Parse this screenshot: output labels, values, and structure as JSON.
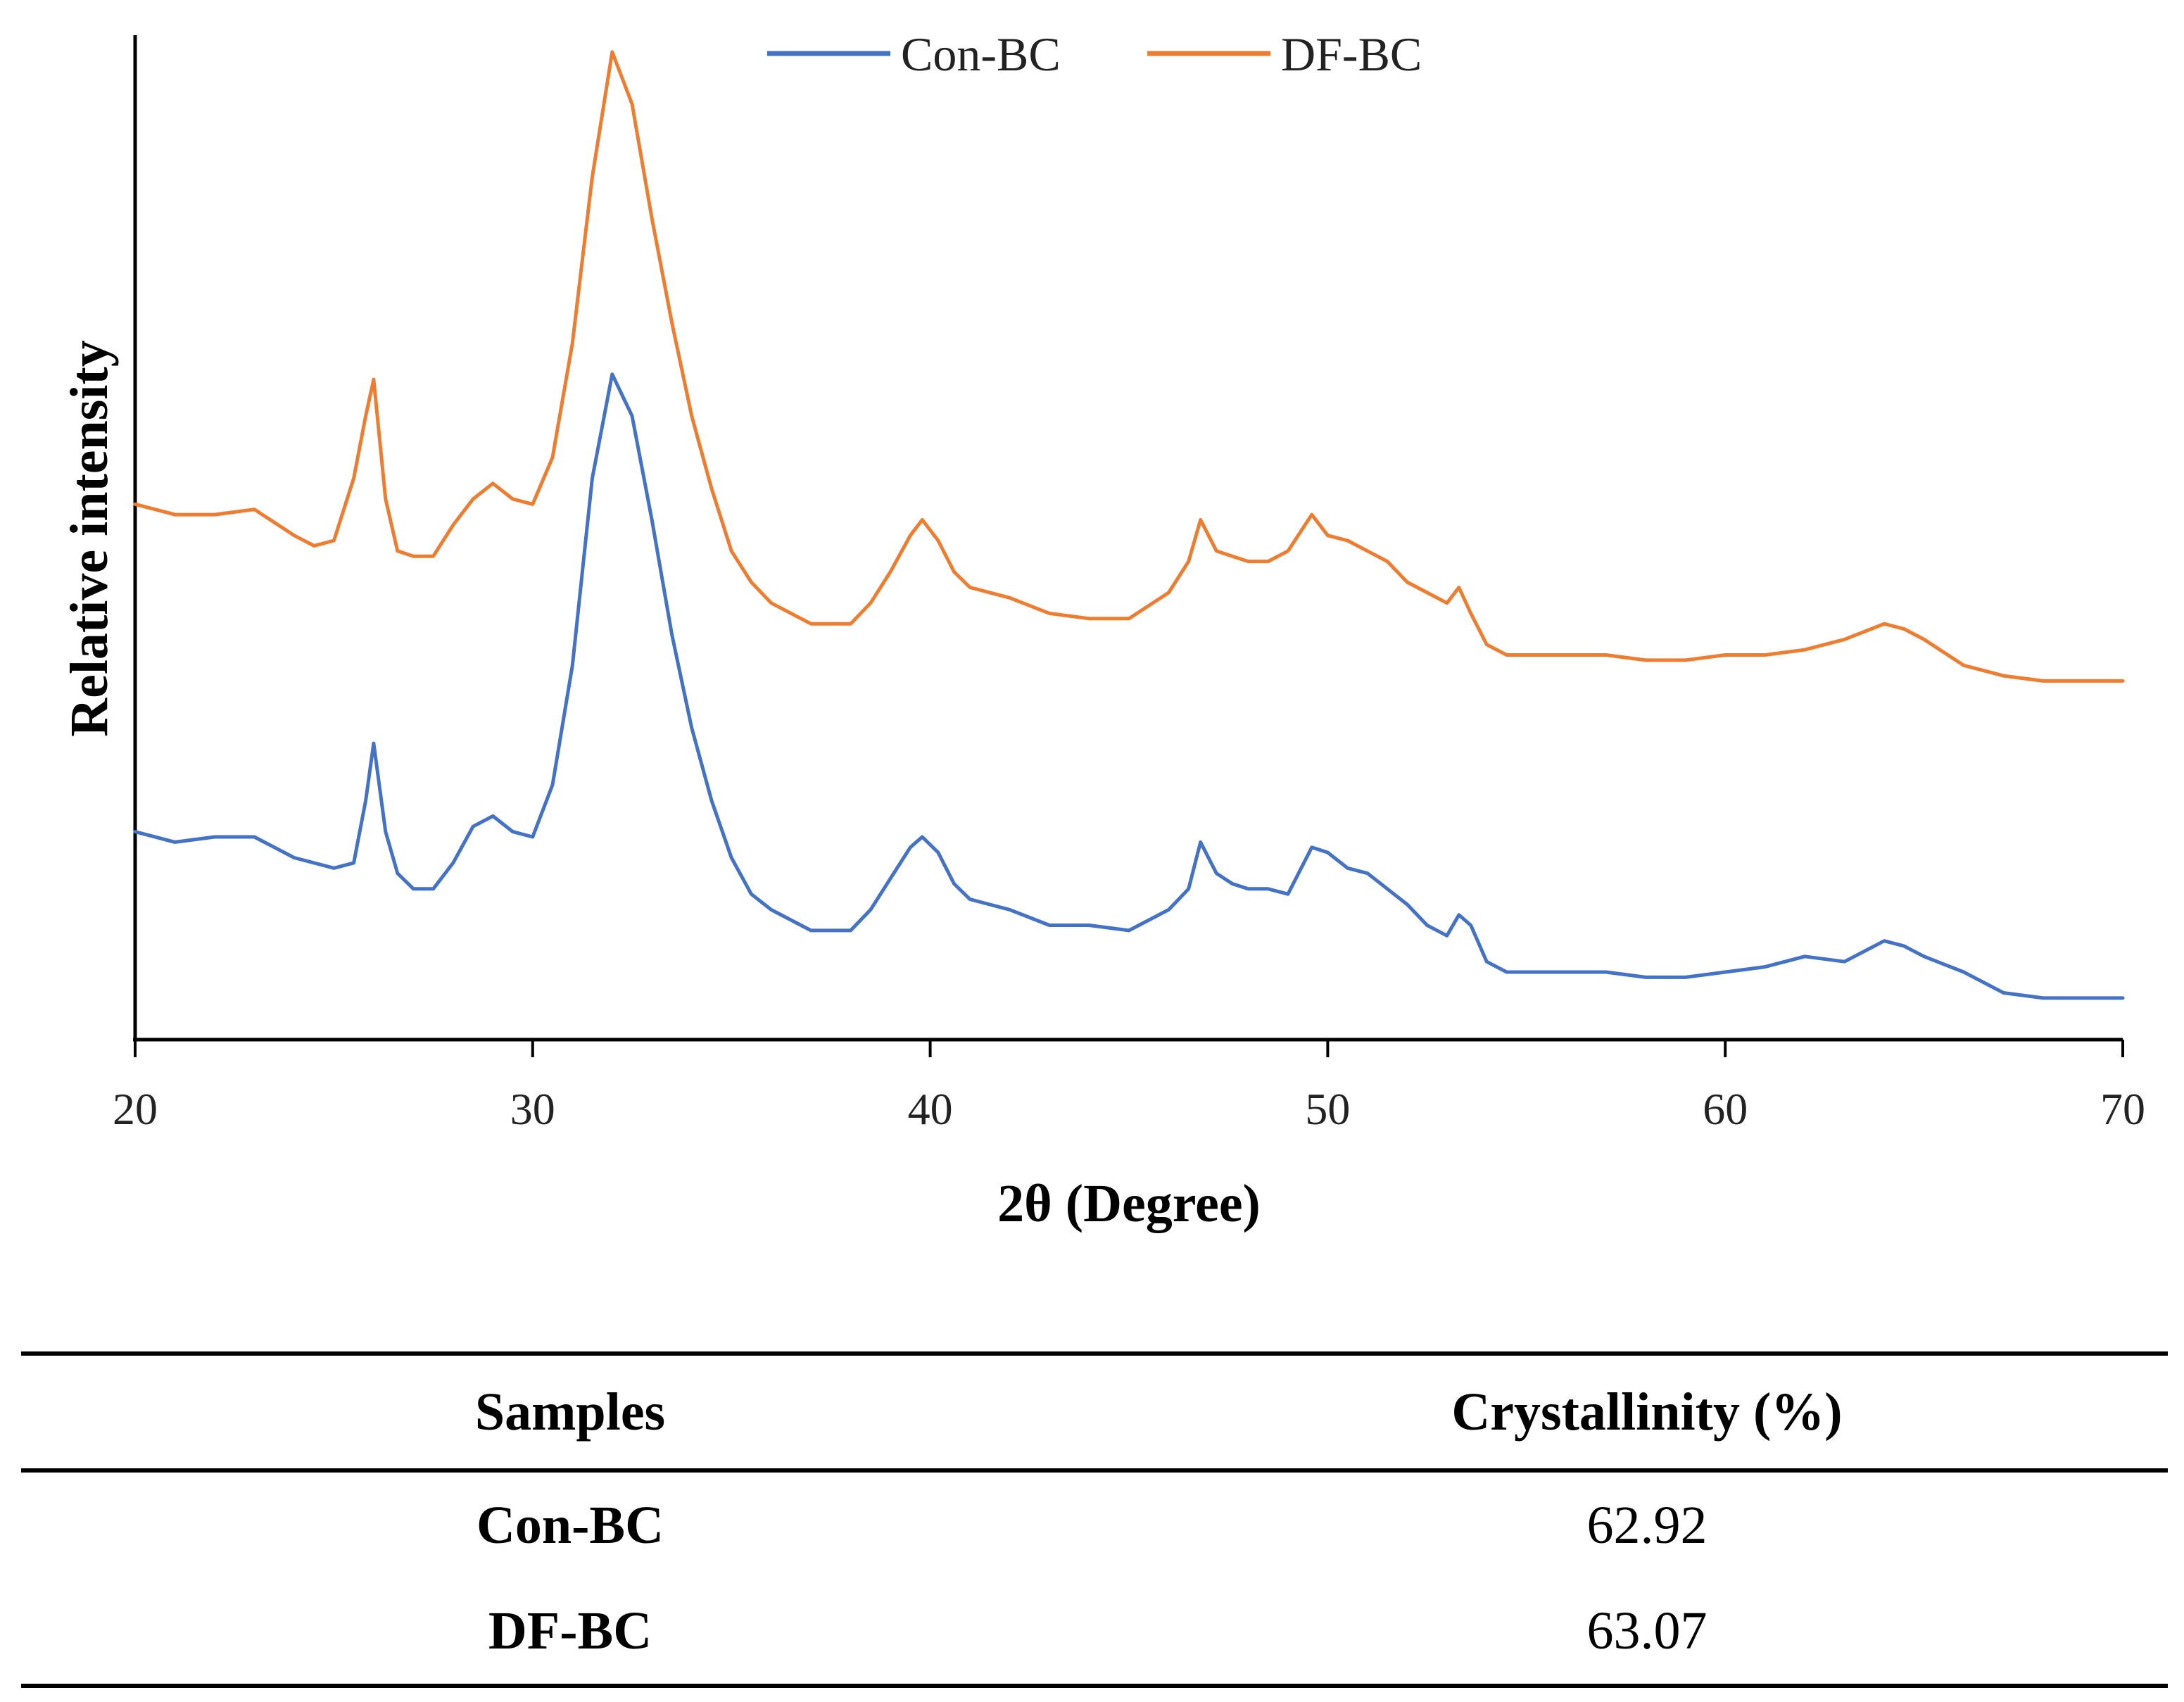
{
  "chart_data": {
    "type": "line",
    "title": "",
    "xlabel": "2θ (Degree)",
    "ylabel": "Relative intensity",
    "xlim": [
      20,
      70
    ],
    "ylim": [
      0,
      100
    ],
    "xticks": [
      "20",
      "30",
      "40",
      "50",
      "60",
      "70"
    ],
    "xtick_values": [
      20,
      30,
      40,
      50,
      60,
      70
    ],
    "yticks": [],
    "grid": false,
    "legend": {
      "position": "top-center"
    },
    "series": [
      {
        "name": "Con-BC",
        "color": "#4472C4",
        "x": [
          20,
          21,
          22,
          23,
          24,
          25,
          25.5,
          25.8,
          26,
          26.3,
          26.6,
          27,
          27.5,
          28,
          28.5,
          29,
          29.5,
          30,
          30.5,
          31,
          31.5,
          32,
          32.5,
          33,
          33.5,
          34,
          34.5,
          35,
          35.5,
          36,
          37,
          38,
          38.5,
          39,
          39.5,
          39.8,
          40.2,
          40.6,
          41,
          41.5,
          42,
          43,
          44,
          45,
          46,
          46.5,
          46.8,
          47.2,
          47.6,
          48,
          48.5,
          49,
          49.6,
          50,
          50.5,
          51,
          51.5,
          52,
          52.5,
          53,
          53.3,
          53.6,
          54,
          54.5,
          55,
          56,
          57,
          58,
          59,
          60,
          61,
          62,
          63,
          64,
          64.5,
          65,
          66,
          67,
          68,
          69,
          70
        ],
        "values": [
          20,
          19,
          19.5,
          19.5,
          17.5,
          16.5,
          17,
          23,
          28.5,
          20,
          16,
          14.5,
          14.5,
          17,
          20.5,
          21.5,
          20,
          19.5,
          24.5,
          36,
          54,
          64,
          60,
          50,
          39,
          30,
          23,
          17.5,
          14,
          12.5,
          10.5,
          10.5,
          12.5,
          15.5,
          18.5,
          19.5,
          18,
          15,
          13.5,
          13,
          12.5,
          11,
          11,
          10.5,
          12.5,
          14.5,
          19,
          16,
          15,
          14.5,
          14.5,
          14,
          18.5,
          18,
          16.5,
          16,
          14.5,
          13,
          11,
          10,
          12,
          11,
          7.5,
          6.5,
          6.5,
          6.5,
          6.5,
          6,
          6,
          6.5,
          7,
          8,
          7.5,
          9.5,
          9,
          8,
          6.5,
          4.5,
          4,
          4,
          4
        ]
      },
      {
        "name": "DF-BC",
        "color": "#ED7D31",
        "x": [
          20,
          21,
          22,
          23,
          24,
          24.5,
          25,
          25.5,
          25.8,
          26,
          26.3,
          26.6,
          27,
          27.5,
          28,
          28.5,
          29,
          29.5,
          30,
          30.5,
          31,
          31.5,
          32,
          32.5,
          33,
          33.5,
          34,
          34.5,
          35,
          35.5,
          36,
          37,
          38,
          38.5,
          39,
          39.5,
          39.8,
          40.2,
          40.6,
          41,
          41.5,
          42,
          43,
          44,
          45,
          46,
          46.5,
          46.8,
          47.2,
          47.6,
          48,
          48.5,
          49,
          49.6,
          50,
          50.5,
          51,
          51.5,
          52,
          52.5,
          53,
          53.3,
          53.6,
          54,
          54.5,
          55,
          56,
          57,
          58,
          59,
          60,
          61,
          62,
          63,
          64,
          64.5,
          65,
          66,
          67,
          68,
          69,
          70
        ],
        "values": [
          51.5,
          50.5,
          50.5,
          51,
          48.5,
          47.5,
          48,
          54,
          60,
          63.5,
          52,
          47,
          46.5,
          46.5,
          49.5,
          52,
          53.5,
          52,
          51.5,
          56,
          67,
          83,
          95,
          90,
          79,
          69,
          60,
          53,
          47,
          44,
          42,
          40,
          40,
          42,
          45,
          48.5,
          50,
          48,
          45,
          43.5,
          43,
          42.5,
          41,
          40.5,
          40.5,
          43,
          46,
          50,
          47,
          46.5,
          46,
          46,
          47,
          50.5,
          48.5,
          48,
          47,
          46,
          44,
          43,
          42,
          43.5,
          41,
          38,
          37,
          37,
          37,
          37,
          36.5,
          36.5,
          37,
          37,
          37.5,
          38.5,
          40,
          39.5,
          38.5,
          36,
          35,
          34.5,
          34.5,
          34.5
        ]
      }
    ]
  },
  "legend": {
    "items": [
      {
        "label": "Con-BC",
        "color": "#4472C4"
      },
      {
        "label": "DF-BC",
        "color": "#ED7D31"
      }
    ]
  },
  "table": {
    "headers": [
      "Samples",
      "Crystallinity (%)"
    ],
    "rows": [
      {
        "sample": "Con-BC",
        "crystallinity": "62.92"
      },
      {
        "sample": "DF-BC",
        "crystallinity": "63.07"
      }
    ]
  }
}
